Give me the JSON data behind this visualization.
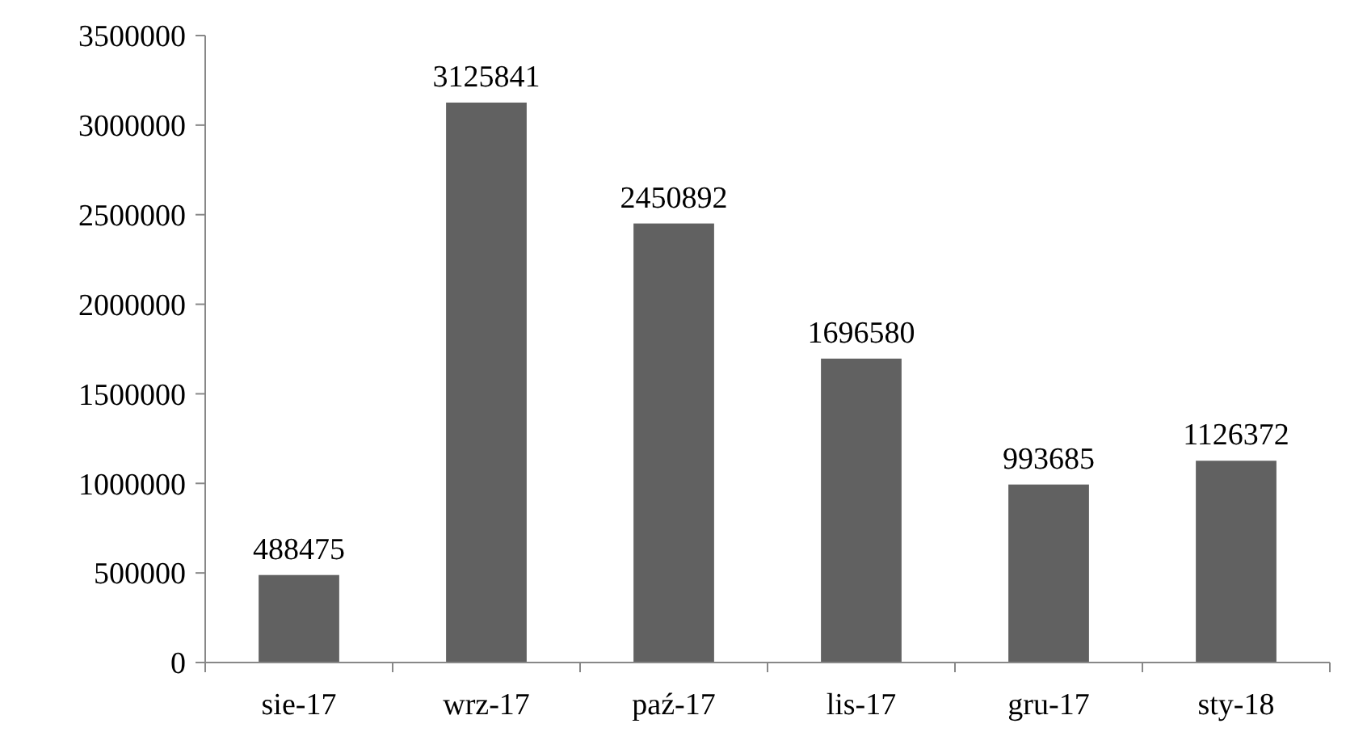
{
  "chart_data": {
    "type": "bar",
    "categories": [
      "sie-17",
      "wrz-17",
      "paź-17",
      "lis-17",
      "gru-17",
      "sty-18"
    ],
    "values": [
      488475,
      3125841,
      2450892,
      1696580,
      993685,
      1126372
    ],
    "color": "#616161",
    "ylim": [
      0,
      3500000
    ],
    "yticks": [
      0,
      500000,
      1000000,
      1500000,
      2000000,
      2500000,
      3000000,
      3500000
    ],
    "data_labels": true
  }
}
